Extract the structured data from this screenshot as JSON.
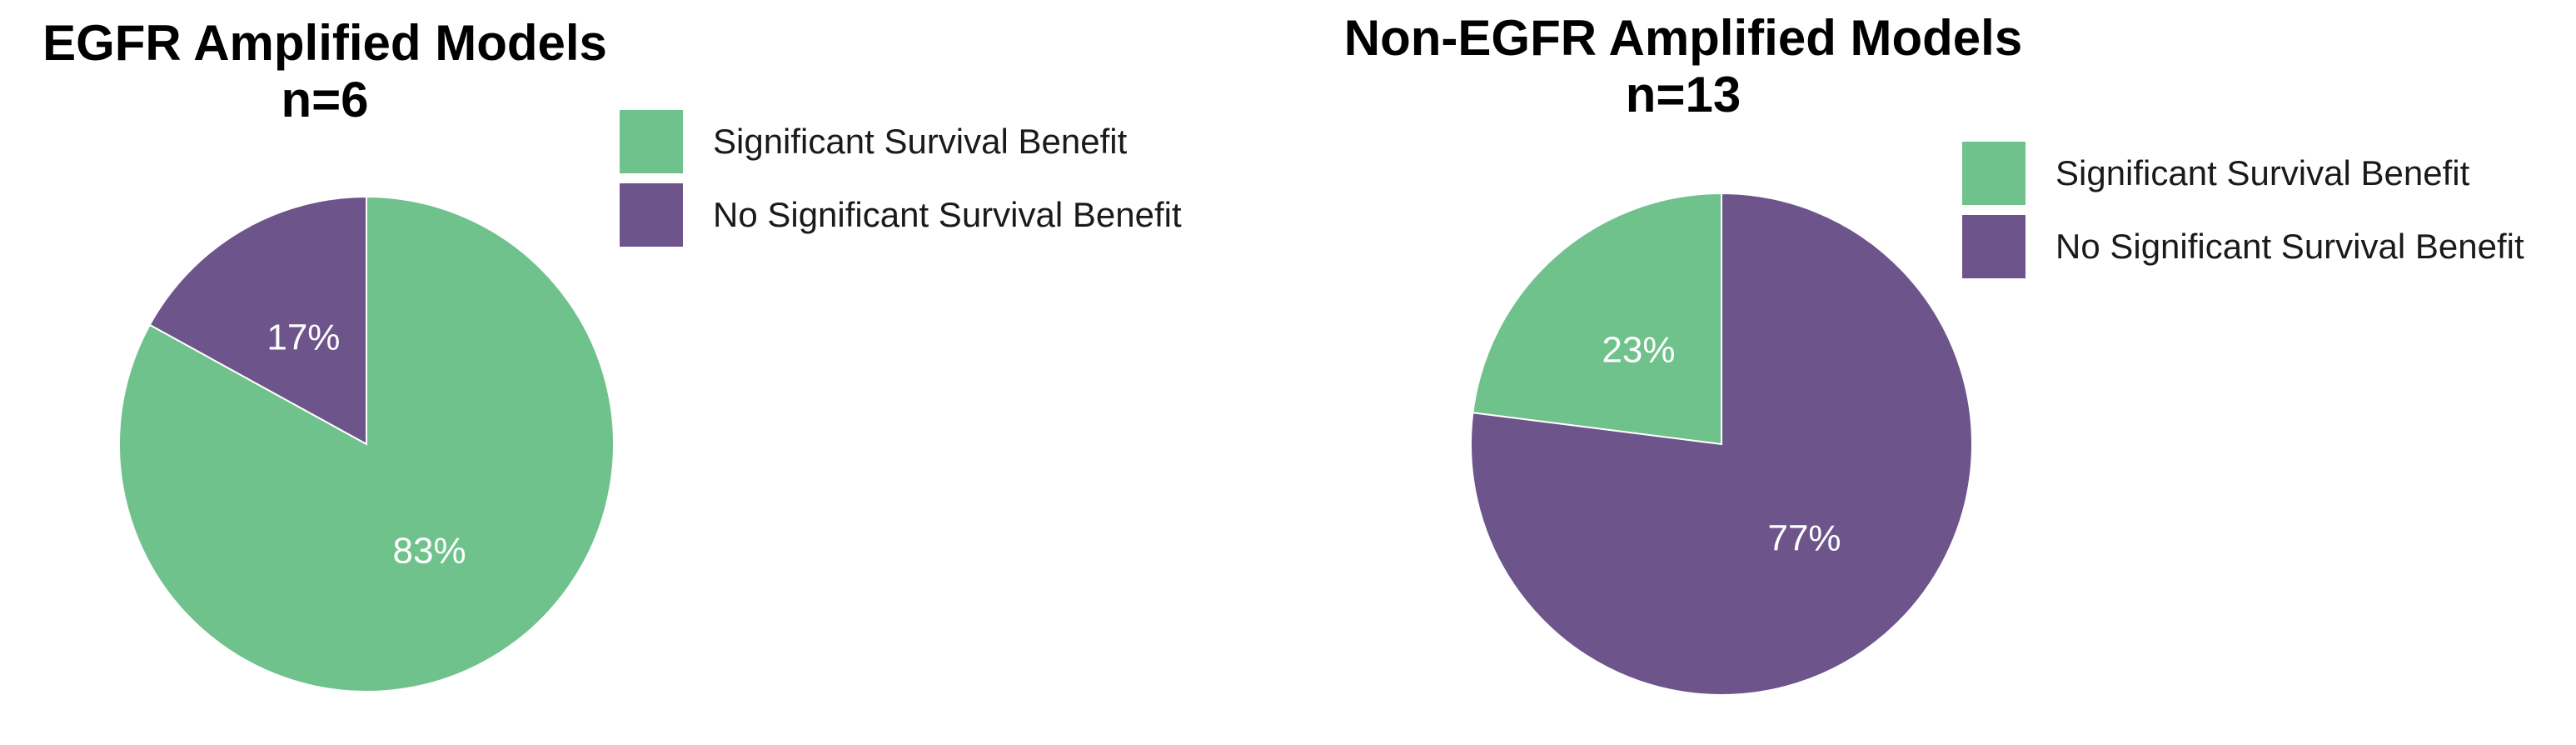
{
  "colors": {
    "significant": "#6fc28b",
    "not_significant": "#6d548b"
  },
  "chart_data": [
    {
      "type": "pie",
      "title": "EGFR Amplified Models",
      "subtitle": "n=6",
      "legend_position": "top-right",
      "slices": [
        {
          "label": "Significant Survival Benefit",
          "value": 83,
          "display": "83%",
          "color": "#6fc28b"
        },
        {
          "label": "No Significant Survival Benefit",
          "value": 17,
          "display": "17%",
          "color": "#6d548b"
        }
      ]
    },
    {
      "type": "pie",
      "title": "Non-EGFR Amplified Models",
      "subtitle": "n=13",
      "legend_position": "top-right",
      "slices": [
        {
          "label": "Significant Survival Benefit",
          "value": 23,
          "display": "23%",
          "color": "#6fc28b"
        },
        {
          "label": "No Significant Survival Benefit",
          "value": 77,
          "display": "77%",
          "color": "#6d548b"
        }
      ]
    }
  ]
}
